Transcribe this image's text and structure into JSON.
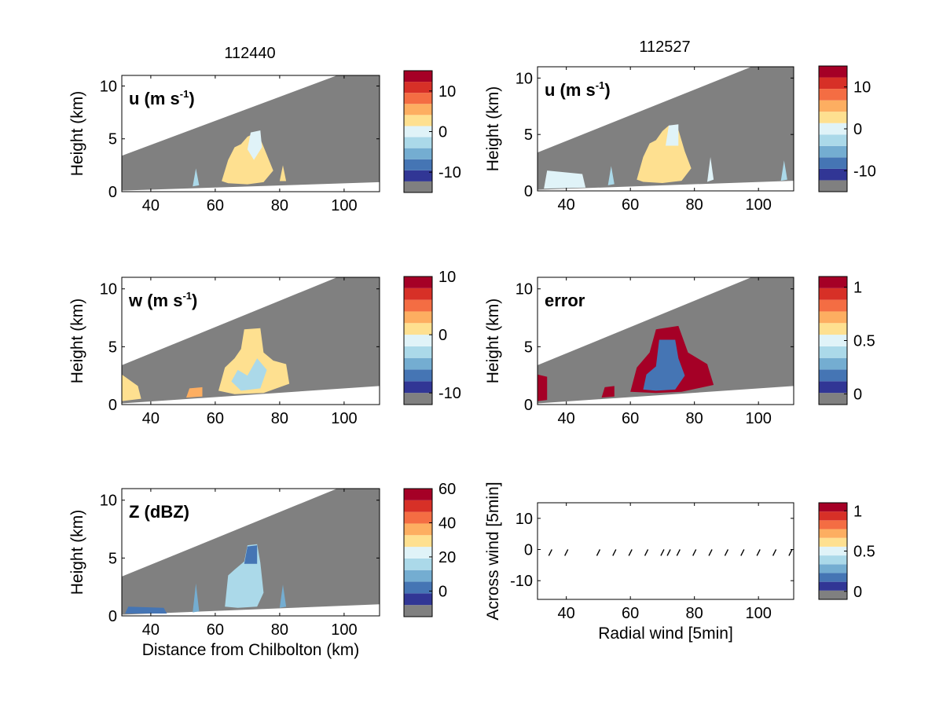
{
  "figure": {
    "column_titles": [
      "112440",
      "112527"
    ]
  },
  "colors": {
    "frame": "#000000",
    "nodata": "#808080",
    "cmap": [
      "#313695",
      "#4575b4",
      "#74add1",
      "#abd9e9",
      "#e0f3f8",
      "#fee090",
      "#fdae61",
      "#f46d43",
      "#d73027",
      "#a50026"
    ]
  },
  "chart_data": [
    {
      "type": "heatmap",
      "panel": "u-left",
      "column_title": "112440",
      "var_label": "u (m s",
      "var_label_sup": "-1",
      "var_label_end": ")",
      "ylabel": "Height (km)",
      "xlabel": "",
      "xlim": [
        31,
        111
      ],
      "ylim": [
        0,
        11
      ],
      "xticks": [
        "40",
        "60",
        "80",
        "100"
      ],
      "xtick_values": [
        40,
        60,
        80,
        100
      ],
      "yticks": [
        "0",
        "5",
        "10"
      ],
      "ytick_values": [
        0,
        5,
        10
      ],
      "colorbar": {
        "ticks": [
          "10",
          "0",
          "-10"
        ],
        "tick_values": [
          10,
          0,
          -10
        ],
        "range": [
          -15,
          15
        ]
      },
      "beam_bottom": [
        0.1,
        0.9
      ],
      "beam_top": [
        3.4,
        12.5
      ]
    },
    {
      "type": "heatmap",
      "panel": "u-right",
      "column_title": "112527",
      "var_label": "u (m s",
      "var_label_sup": "-1",
      "var_label_end": ")",
      "ylabel": "Height (km)",
      "xlabel": "",
      "xlim": [
        31,
        111
      ],
      "ylim": [
        0,
        11
      ],
      "xticks": [
        "40",
        "60",
        "80",
        "100"
      ],
      "xtick_values": [
        40,
        60,
        80,
        100
      ],
      "yticks": [
        "0",
        "5",
        "10"
      ],
      "ytick_values": [
        0,
        5,
        10
      ],
      "colorbar": {
        "ticks": [
          "10",
          "0",
          "-10"
        ],
        "tick_values": [
          10,
          0,
          -10
        ],
        "range": [
          -15,
          15
        ]
      },
      "beam_bottom": [
        0.1,
        0.9
      ],
      "beam_top": [
        3.4,
        12.5
      ]
    },
    {
      "type": "heatmap",
      "panel": "w-left",
      "var_label": "w (m s",
      "var_label_sup": "-1",
      "var_label_end": ")",
      "ylabel": "Height (km)",
      "xlabel": "",
      "xlim": [
        31,
        111
      ],
      "ylim": [
        0,
        11
      ],
      "xticks": [
        "40",
        "60",
        "80",
        "100"
      ],
      "xtick_values": [
        40,
        60,
        80,
        100
      ],
      "yticks": [
        "0",
        "5",
        "10"
      ],
      "ytick_values": [
        0,
        5,
        10
      ],
      "colorbar": {
        "ticks": [
          "10",
          "0",
          "-10"
        ],
        "tick_values": [
          10,
          0,
          -10
        ],
        "range": [
          -12,
          10
        ]
      },
      "beam_bottom": [
        0.1,
        1.6
      ],
      "beam_top": [
        3.4,
        12.5
      ]
    },
    {
      "type": "heatmap",
      "panel": "error-right",
      "var_label": "error",
      "ylabel": "Height (km)",
      "xlabel": "",
      "xlim": [
        31,
        111
      ],
      "ylim": [
        0,
        11
      ],
      "xticks": [
        "40",
        "60",
        "80",
        "100"
      ],
      "xtick_values": [
        40,
        60,
        80,
        100
      ],
      "yticks": [
        "0",
        "5",
        "10"
      ],
      "ytick_values": [
        0,
        5,
        10
      ],
      "colorbar": {
        "ticks": [
          "1",
          "0.5",
          "0"
        ],
        "tick_values": [
          1,
          0.5,
          0
        ],
        "range": [
          -0.1,
          1.1
        ]
      },
      "beam_bottom": [
        0.1,
        1.6
      ],
      "beam_top": [
        3.4,
        12.5
      ]
    },
    {
      "type": "heatmap",
      "panel": "z-left",
      "var_label": "Z (dBZ)",
      "ylabel": "Height (km)",
      "xlabel": "Distance from Chilbolton (km)",
      "xlim": [
        31,
        111
      ],
      "ylim": [
        0,
        11
      ],
      "xticks": [
        "40",
        "60",
        "80",
        "100"
      ],
      "xtick_values": [
        40,
        60,
        80,
        100
      ],
      "yticks": [
        "0",
        "5",
        "10"
      ],
      "ytick_values": [
        0,
        5,
        10
      ],
      "colorbar": {
        "ticks": [
          "60",
          "40",
          "20",
          "0"
        ],
        "tick_values": [
          60,
          40,
          20,
          0
        ],
        "range": [
          -15,
          60
        ]
      },
      "beam_bottom": [
        0.1,
        1.0
      ],
      "beam_top": [
        3.4,
        12.5
      ]
    },
    {
      "type": "scatter",
      "panel": "wind-right",
      "ylabel": "Across wind [5min]",
      "xlabel": "Radial wind [5min]",
      "xlim": [
        31,
        111
      ],
      "ylim": [
        -16,
        15
      ],
      "xticks": [
        "40",
        "60",
        "80",
        "100"
      ],
      "xtick_values": [
        40,
        60,
        80,
        100
      ],
      "yticks": [
        "10",
        "0",
        "-10"
      ],
      "ytick_values": [
        10,
        0,
        -10
      ],
      "colorbar": {
        "ticks": [
          "1",
          "0.5",
          "0"
        ],
        "tick_values": [
          1,
          0.5,
          0
        ],
        "range": [
          -0.1,
          1.1
        ]
      },
      "x": [
        35,
        40,
        50,
        55,
        60,
        65,
        70,
        72,
        75,
        80,
        85,
        90,
        95,
        100,
        105,
        110
      ],
      "y": [
        -1,
        -1,
        -1,
        -1,
        -1,
        -1,
        -1,
        -1,
        -1,
        -1,
        -1,
        -1,
        -1,
        -1,
        -1,
        -1
      ]
    }
  ]
}
